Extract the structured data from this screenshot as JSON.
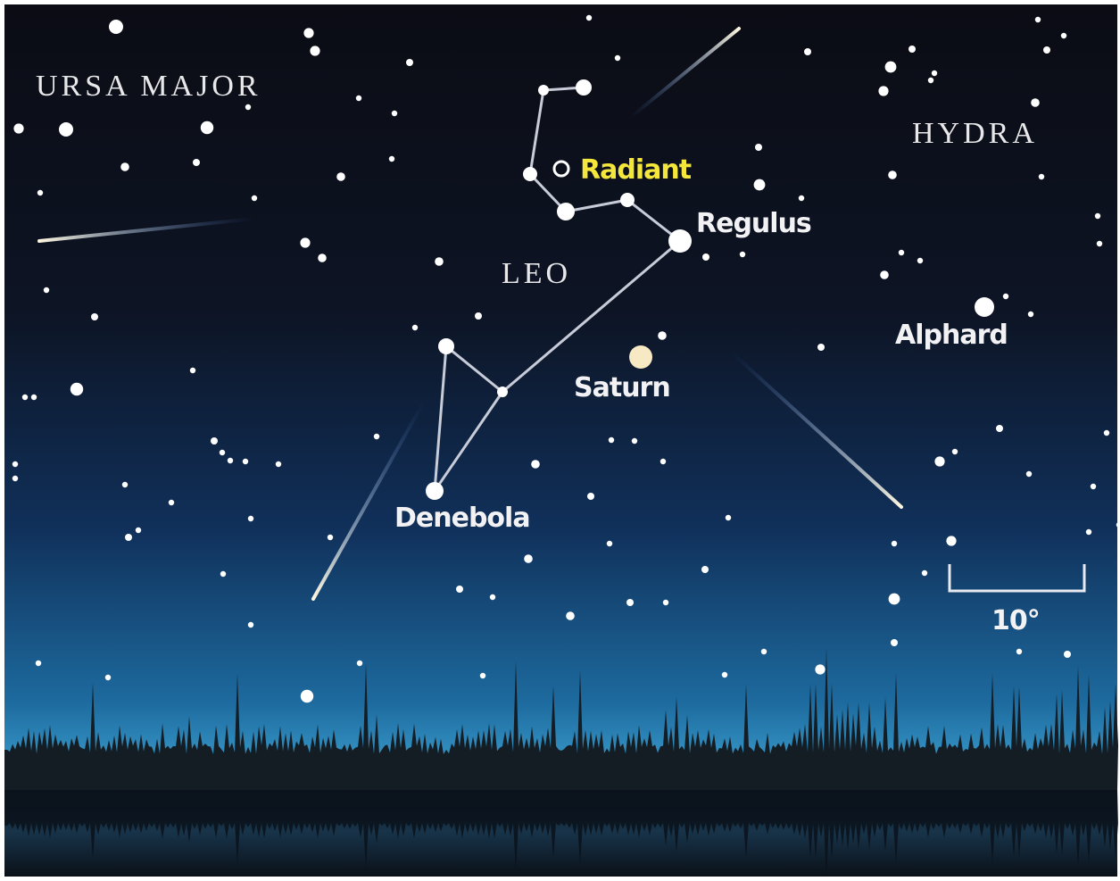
{
  "constellations": [
    "URSA MAJOR",
    "LEO",
    "HYDRA"
  ],
  "radiant": "Radiant",
  "stars": [
    "Regulus",
    "Alphard",
    "Saturn",
    "Denebola"
  ],
  "scale": "10°"
}
